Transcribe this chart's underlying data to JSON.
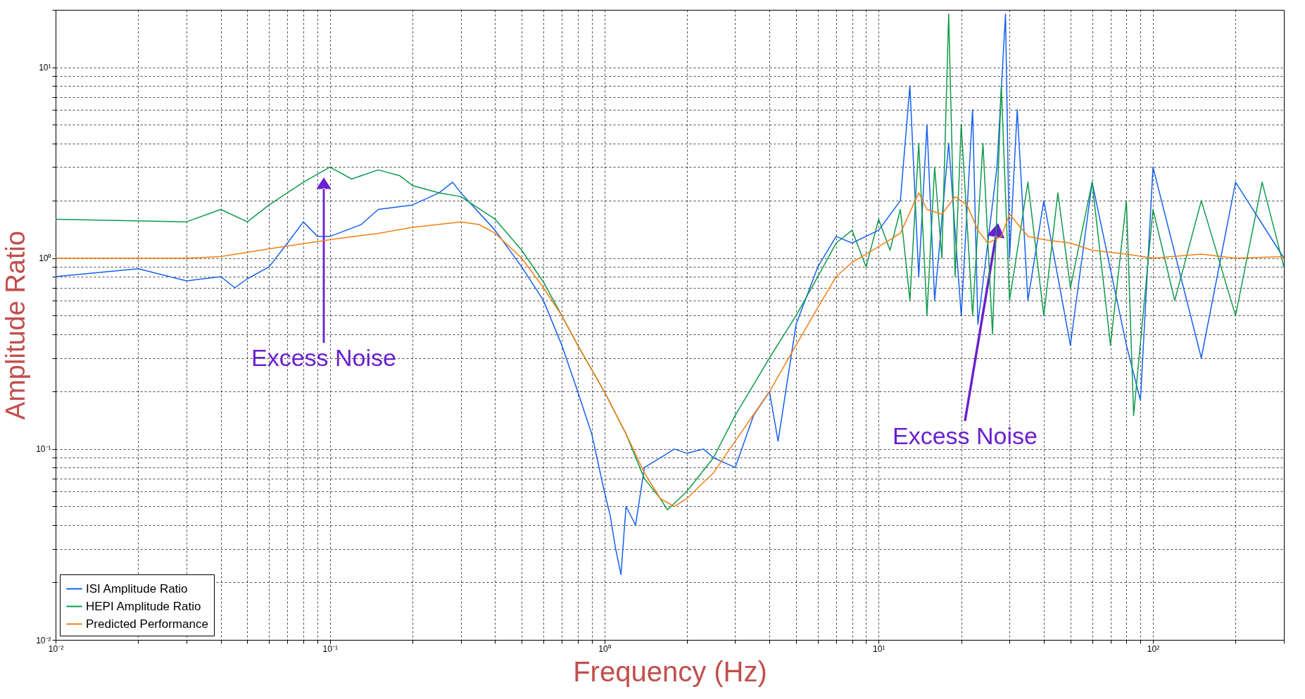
{
  "chart_data": {
    "type": "line",
    "xlabel": "Frequency (Hz)",
    "ylabel": "Amplitude Ratio",
    "log": "xy",
    "grid": true,
    "legend": "bottom left",
    "xlim": [
      0.01,
      300
    ],
    "ylim": [
      0.01,
      20
    ],
    "xticks": [
      {
        "value": 0.01,
        "label": "10⁻²"
      },
      {
        "value": 0.02,
        "label": null
      },
      {
        "value": 0.03,
        "label": null
      },
      {
        "value": 0.04,
        "label": null
      },
      {
        "value": 0.05,
        "label": null
      },
      {
        "value": 0.06,
        "label": null
      },
      {
        "value": 0.07,
        "label": null
      },
      {
        "value": 0.08,
        "label": null
      },
      {
        "value": 0.09,
        "label": null
      },
      {
        "value": 0.1,
        "label": "10⁻¹"
      },
      {
        "value": 0.2,
        "label": null
      },
      {
        "value": 0.3,
        "label": null
      },
      {
        "value": 0.4,
        "label": null
      },
      {
        "value": 0.5,
        "label": null
      },
      {
        "value": 0.6,
        "label": null
      },
      {
        "value": 0.7,
        "label": null
      },
      {
        "value": 0.8,
        "label": null
      },
      {
        "value": 0.9,
        "label": null
      },
      {
        "value": 1,
        "label": "10⁰"
      },
      {
        "value": 2,
        "label": null
      },
      {
        "value": 3,
        "label": null
      },
      {
        "value": 4,
        "label": null
      },
      {
        "value": 5,
        "label": null
      },
      {
        "value": 6,
        "label": null
      },
      {
        "value": 7,
        "label": null
      },
      {
        "value": 8,
        "label": null
      },
      {
        "value": 9,
        "label": null
      },
      {
        "value": 10,
        "label": "10¹"
      },
      {
        "value": 20,
        "label": null
      },
      {
        "value": 30,
        "label": null
      },
      {
        "value": 40,
        "label": null
      },
      {
        "value": 50,
        "label": null
      },
      {
        "value": 60,
        "label": null
      },
      {
        "value": 70,
        "label": null
      },
      {
        "value": 80,
        "label": null
      },
      {
        "value": 90,
        "label": null
      },
      {
        "value": 100,
        "label": "10²"
      },
      {
        "value": 200,
        "label": null
      },
      {
        "value": 300,
        "label": null
      }
    ],
    "yticks": [
      {
        "value": 0.01,
        "label": "10⁻²"
      },
      {
        "value": 0.02,
        "label": null
      },
      {
        "value": 0.03,
        "label": null
      },
      {
        "value": 0.04,
        "label": null
      },
      {
        "value": 0.05,
        "label": null
      },
      {
        "value": 0.06,
        "label": null
      },
      {
        "value": 0.07,
        "label": null
      },
      {
        "value": 0.08,
        "label": null
      },
      {
        "value": 0.09,
        "label": null
      },
      {
        "value": 0.1,
        "label": "10⁻¹"
      },
      {
        "value": 0.2,
        "label": null
      },
      {
        "value": 0.3,
        "label": null
      },
      {
        "value": 0.4,
        "label": null
      },
      {
        "value": 0.5,
        "label": null
      },
      {
        "value": 0.6,
        "label": null
      },
      {
        "value": 0.7,
        "label": null
      },
      {
        "value": 0.8,
        "label": null
      },
      {
        "value": 0.9,
        "label": null
      },
      {
        "value": 1,
        "label": "10⁰"
      },
      {
        "value": 2,
        "label": null
      },
      {
        "value": 3,
        "label": null
      },
      {
        "value": 4,
        "label": null
      },
      {
        "value": 5,
        "label": null
      },
      {
        "value": 6,
        "label": null
      },
      {
        "value": 7,
        "label": null
      },
      {
        "value": 8,
        "label": null
      },
      {
        "value": 9,
        "label": null
      },
      {
        "value": 10,
        "label": "10¹"
      },
      {
        "value": 20,
        "label": null
      }
    ],
    "series": [
      {
        "name": "ISI Amplitude Ratio",
        "color": "#1560f0",
        "x": [
          0.01,
          0.02,
          0.03,
          0.04,
          0.045,
          0.05,
          0.06,
          0.07,
          0.08,
          0.09,
          0.1,
          0.13,
          0.15,
          0.2,
          0.25,
          0.28,
          0.3,
          0.4,
          0.5,
          0.6,
          0.7,
          0.8,
          0.9,
          1.0,
          1.05,
          1.1,
          1.15,
          1.2,
          1.3,
          1.4,
          1.6,
          1.8,
          2,
          2.3,
          2.5,
          3,
          3.5,
          4,
          4.3,
          5,
          6,
          7,
          8,
          10,
          12,
          13,
          14,
          15,
          16,
          18,
          20,
          22,
          23,
          27,
          29,
          30,
          32,
          35,
          40,
          50,
          60,
          80,
          90,
          100,
          150,
          200,
          300
        ],
        "values": [
          0.8,
          0.88,
          0.76,
          0.8,
          0.7,
          0.78,
          0.9,
          1.2,
          1.55,
          1.3,
          1.3,
          1.5,
          1.8,
          1.9,
          2.2,
          2.5,
          2.2,
          1.4,
          0.9,
          0.6,
          0.35,
          0.2,
          0.12,
          0.06,
          0.045,
          0.03,
          0.022,
          0.05,
          0.04,
          0.08,
          0.09,
          0.1,
          0.095,
          0.1,
          0.09,
          0.08,
          0.15,
          0.2,
          0.11,
          0.45,
          0.9,
          1.3,
          1.2,
          1.4,
          2.0,
          8,
          0.8,
          5,
          0.6,
          4,
          0.5,
          6,
          0.45,
          3,
          19,
          1.0,
          6,
          0.6,
          2.0,
          0.35,
          2.5,
          0.35,
          0.18,
          3.0,
          0.3,
          2.5,
          1.0
        ]
      },
      {
        "name": "HEPI Amplitude Ratio",
        "color": "#0f9a4a",
        "x": [
          0.01,
          0.03,
          0.04,
          0.05,
          0.06,
          0.08,
          0.1,
          0.12,
          0.15,
          0.18,
          0.2,
          0.25,
          0.3,
          0.4,
          0.5,
          0.6,
          0.7,
          0.8,
          1.0,
          1.2,
          1.4,
          1.6,
          1.7,
          2.0,
          2.5,
          3,
          4,
          5,
          6,
          7,
          8,
          9,
          10,
          11,
          12,
          13,
          14,
          15,
          16,
          17,
          18,
          19,
          20,
          22,
          24,
          26,
          28,
          30,
          35,
          40,
          45,
          50,
          60,
          70,
          80,
          85,
          100,
          120,
          150,
          200,
          250,
          300
        ],
        "values": [
          1.6,
          1.55,
          1.8,
          1.55,
          1.9,
          2.5,
          3.0,
          2.6,
          2.9,
          2.7,
          2.4,
          2.2,
          2.1,
          1.6,
          1.1,
          0.75,
          0.5,
          0.35,
          0.2,
          0.12,
          0.07,
          0.055,
          0.048,
          0.06,
          0.09,
          0.15,
          0.3,
          0.5,
          0.8,
          1.2,
          1.4,
          0.9,
          1.6,
          1.1,
          1.8,
          0.6,
          4,
          0.5,
          3,
          1,
          19,
          0.8,
          5,
          0.5,
          4,
          0.4,
          8,
          0.6,
          2.5,
          0.5,
          2.2,
          0.7,
          2.5,
          0.35,
          2.0,
          0.15,
          1.8,
          0.6,
          2.0,
          0.5,
          2.5,
          0.9
        ]
      },
      {
        "name": "Predicted Performance",
        "color": "#f57f17",
        "x": [
          0.01,
          0.03,
          0.04,
          0.06,
          0.1,
          0.15,
          0.2,
          0.3,
          0.35,
          0.4,
          0.5,
          0.6,
          0.7,
          0.8,
          1.0,
          1.2,
          1.4,
          1.6,
          1.8,
          2.0,
          2.5,
          3,
          4,
          5,
          6,
          7,
          8,
          10,
          12,
          14,
          15,
          17,
          19,
          21,
          23,
          25,
          28,
          30,
          35,
          40,
          50,
          60,
          80,
          100,
          150,
          200,
          300
        ],
        "values": [
          1.0,
          1.0,
          1.02,
          1.12,
          1.25,
          1.35,
          1.45,
          1.55,
          1.5,
          1.35,
          1.0,
          0.7,
          0.5,
          0.35,
          0.2,
          0.12,
          0.075,
          0.055,
          0.05,
          0.055,
          0.075,
          0.11,
          0.2,
          0.35,
          0.55,
          0.8,
          0.95,
          1.15,
          1.35,
          2.2,
          1.8,
          1.7,
          2.1,
          1.9,
          1.4,
          1.2,
          1.3,
          1.7,
          1.3,
          1.25,
          1.2,
          1.1,
          1.05,
          1.0,
          1.05,
          1.0,
          1.02
        ]
      }
    ],
    "annotations": [
      "Excess Noise",
      "Excess Noise"
    ]
  }
}
